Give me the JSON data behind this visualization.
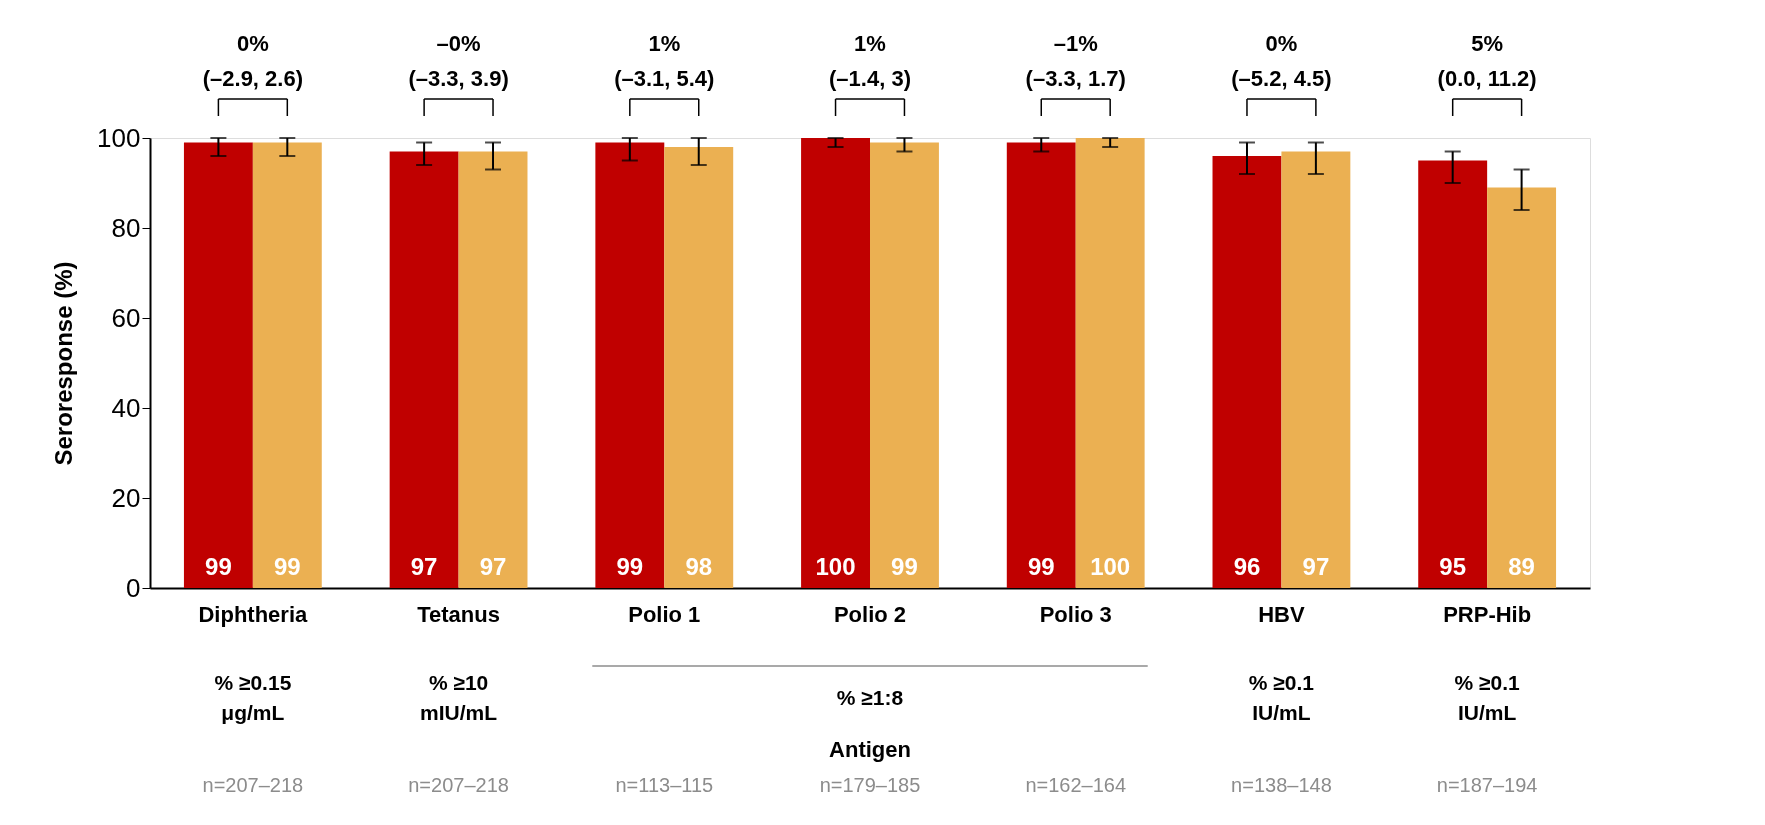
{
  "chart_data": {
    "type": "bar",
    "ylabel": "Seroresponse (%)",
    "categories": [
      "Diphtheria",
      "Tetanus",
      "Polio 1",
      "Polio 2",
      "Polio 3",
      "HBV",
      "PRP-Hib"
    ],
    "series": [
      {
        "color": "#c00000",
        "values": [
          99,
          97,
          99,
          100,
          99,
          96,
          95
        ],
        "errors": [
          [
            96,
            100
          ],
          [
            94,
            99
          ],
          [
            95,
            100
          ],
          [
            98,
            100
          ],
          [
            97,
            100
          ],
          [
            92,
            99
          ],
          [
            90,
            97
          ]
        ]
      },
      {
        "color": "#ebb052",
        "values": [
          99,
          97,
          98,
          99,
          100,
          97,
          89
        ],
        "errors": [
          [
            96,
            100
          ],
          [
            93,
            99
          ],
          [
            94,
            100
          ],
          [
            97,
            100
          ],
          [
            98,
            100
          ],
          [
            92,
            99
          ],
          [
            84,
            93
          ]
        ]
      }
    ],
    "ylim": [
      0,
      100
    ],
    "yticks": [
      0,
      20,
      40,
      60,
      80,
      100
    ],
    "grid": false,
    "legend": false,
    "data_labels": true,
    "annotations": [
      "0%\n(–2.9, 2.6)",
      "–0%\n(–3.3, 3.9)",
      "1%\n(–3.1, 5.4)",
      "1%\n(–1.4, 3)",
      "–1%\n(–3.3, 1.7)",
      "0%\n(–5.2, 4.5)",
      "5%\n(0.0, 11.2)",
      "% ≥0.15\nμg/mL",
      "% ≥10\nmIU/mL",
      "% ≥1:8",
      "% ≥0.1\nIU/mL",
      "% ≥0.1\nIU/mL",
      "Antigen",
      "n=207–218",
      "n=207–218",
      "n=113–115",
      "n=179–185",
      "n=162–164",
      "n=138–148",
      "n=187–194"
    ]
  }
}
